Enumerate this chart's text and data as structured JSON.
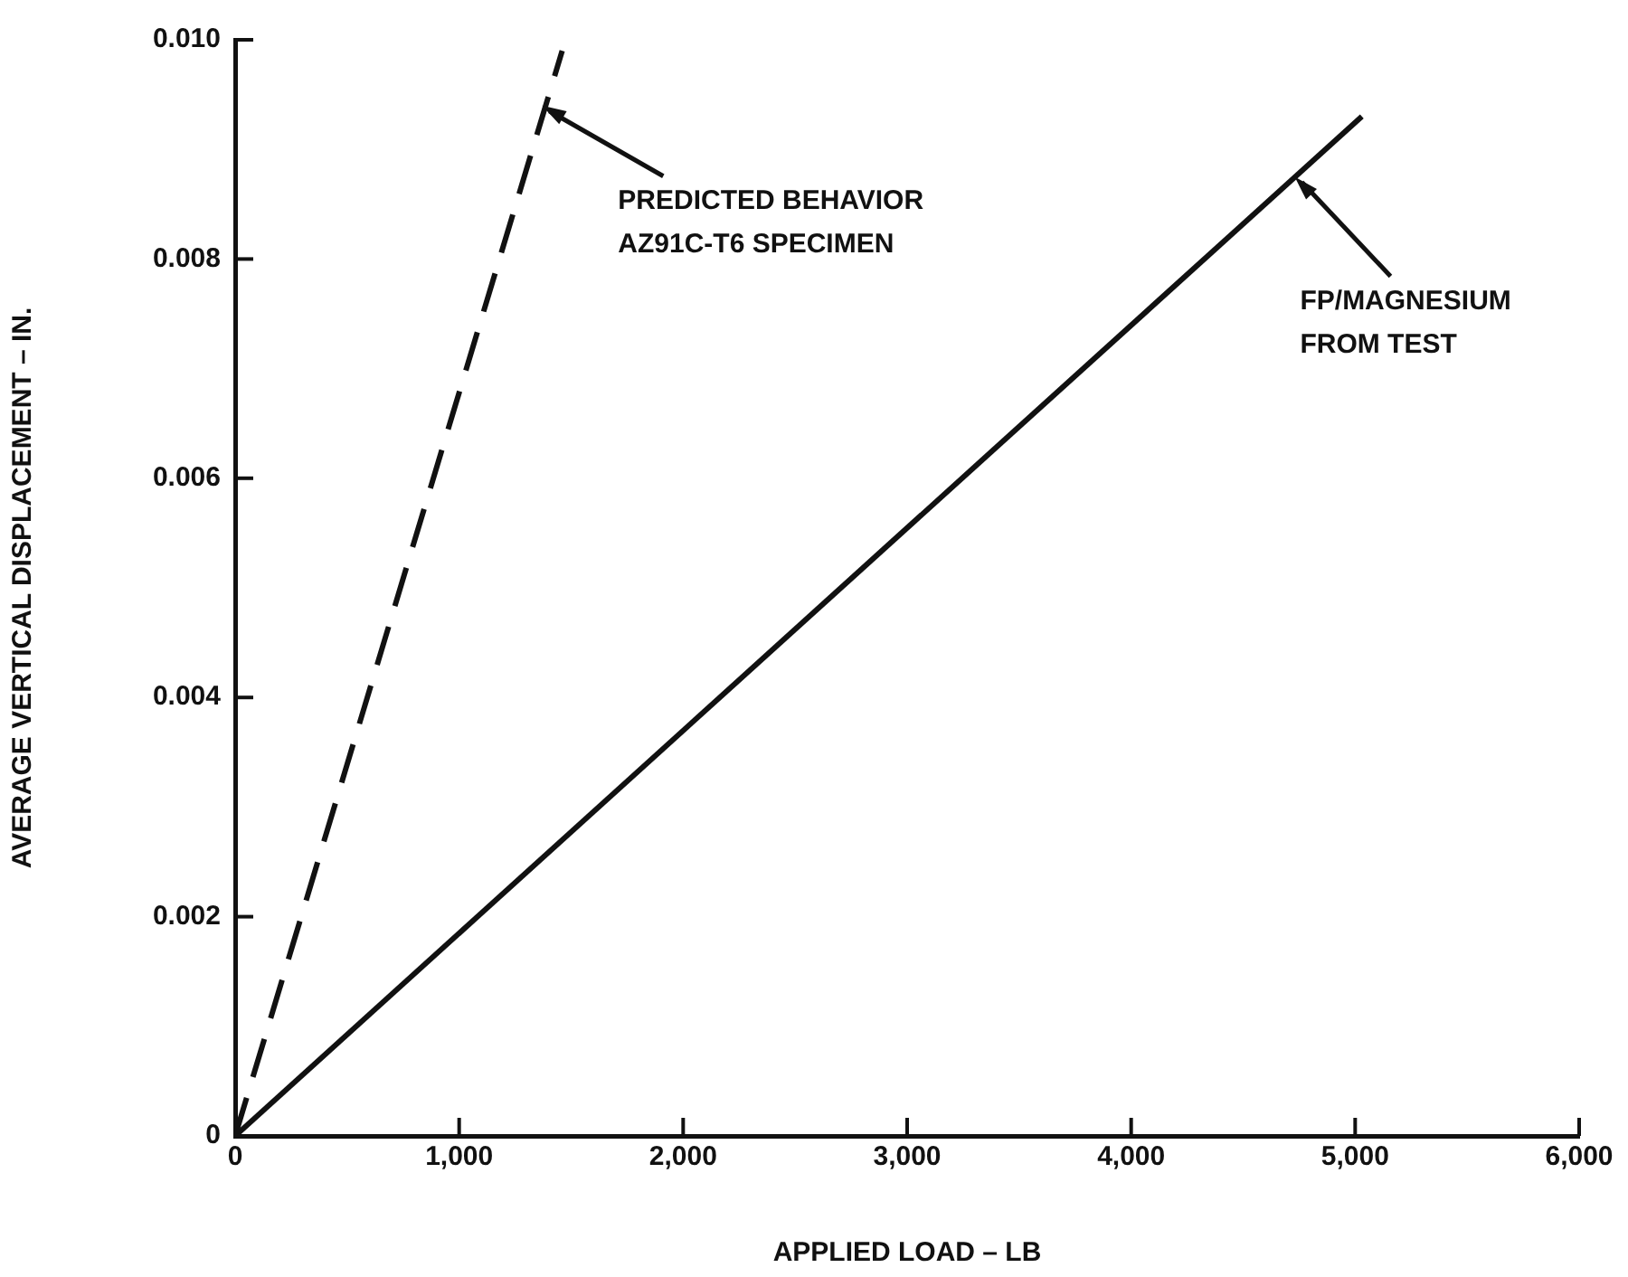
{
  "chart_data": {
    "type": "line",
    "xlabel": "APPLIED LOAD – LB",
    "ylabel": "AVERAGE VERTICAL DISPLACEMENT – IN.",
    "xlim": [
      0,
      6000
    ],
    "xticks": [
      0,
      {
        "value": 1000,
        "label": "1,000"
      },
      {
        "value": 2000,
        "label": "2,000"
      },
      {
        "value": 3000,
        "label": "3,000"
      },
      {
        "value": 4000,
        "label": "4,000"
      },
      {
        "value": 5000,
        "label": "5,000"
      },
      {
        "value": 6000,
        "label": "6,000"
      }
    ],
    "ylim": [
      0,
      0.01
    ],
    "yticks": [
      0,
      0.002,
      0.004,
      0.006,
      0.008,
      {
        "value": 0.01,
        "label": "0.010"
      }
    ],
    "grid": false,
    "legend": false,
    "marker": "none",
    "series": [
      {
        "color": "#111111",
        "line_style": "dashed",
        "x": [
          0,
          1460
        ],
        "values": [
          0,
          0.0099
        ]
      },
      {
        "color": "#111111",
        "line_style": "solid",
        "x": [
          0,
          5030
        ],
        "values": [
          0,
          0.0093
        ]
      }
    ],
    "annotations": [
      {
        "text": "PREDICTED BEHAVIOR\nAZ91C-T6 SPECIMEN",
        "x": 1370,
        "y": 0.0094
      },
      {
        "text": "FP/MAGNESIUM\nFROM TEST",
        "x": 4730,
        "y": 0.00875
      }
    ]
  }
}
